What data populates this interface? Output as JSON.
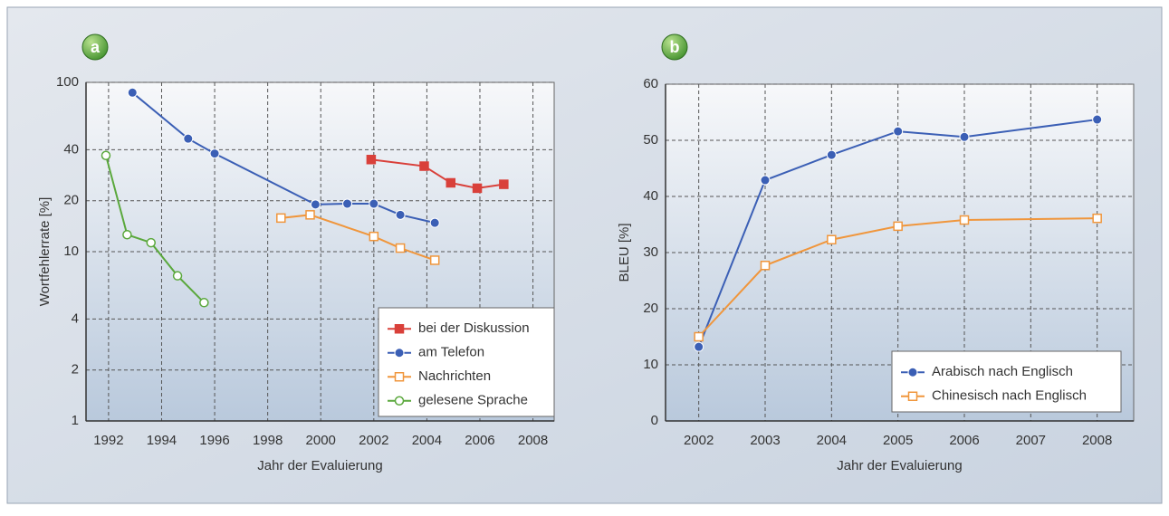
{
  "chart_data": [
    {
      "type": "line",
      "annotations": [
        "a"
      ],
      "x_label": "Jahr der Evaluierung",
      "y_label": "Wortfehlerrate [%]",
      "log_y": true,
      "grid": true,
      "legend": "lower right",
      "xlim": [
        1991.15,
        2008.8
      ],
      "xticks": [
        1992,
        1994,
        1996,
        1998,
        2000,
        2002,
        2004,
        2006,
        2008
      ],
      "ylim": [
        1,
        100
      ],
      "yticks": [
        1,
        2,
        4,
        10,
        20,
        40,
        100
      ],
      "series": [
        {
          "name": "bei der Diskussion",
          "color": "#d9403a",
          "marker": "square-filled",
          "x": [
            2001.9,
            2003.9,
            2004.9,
            2005.9,
            2006.9
          ],
          "values": [
            35,
            32,
            25.5,
            23.7,
            25
          ]
        },
        {
          "name": "am Telefon",
          "color": "#3b5fb5",
          "marker": "circle-filled",
          "x": [
            1992.9,
            1995,
            1996,
            1999.8,
            2001,
            2002,
            2003,
            2004.3
          ],
          "values": [
            87,
            46.5,
            38,
            19,
            19.2,
            19.2,
            16.5,
            14.8
          ]
        },
        {
          "name": "Nachrichten",
          "color": "#f0963c",
          "marker": "square-open",
          "x": [
            1998.5,
            1999.6,
            2002,
            2003,
            2004.3
          ],
          "values": [
            15.8,
            16.5,
            12.3,
            10.5,
            8.9
          ]
        },
        {
          "name": "gelesene Sprache",
          "color": "#5aa83c",
          "marker": "circle-open",
          "x": [
            1991.9,
            1992.7,
            1993.6,
            1994.6,
            1995.6
          ],
          "values": [
            37,
            12.6,
            11.3,
            7.2,
            5.0
          ]
        }
      ]
    },
    {
      "type": "line",
      "annotations": [
        "b"
      ],
      "x_label": "Jahr der Evaluierung",
      "y_label": "BLEU [%]",
      "log_y": false,
      "grid": true,
      "legend": "lower right",
      "xlim": [
        2001.5,
        2008.55
      ],
      "xticks": [
        2002,
        2003,
        2004,
        2005,
        2006,
        2007,
        2008
      ],
      "ylim": [
        0,
        60
      ],
      "yticks": [
        0,
        10,
        20,
        30,
        40,
        50,
        60
      ],
      "series": [
        {
          "name": "Arabisch nach Englisch",
          "color": "#3b5fb5",
          "marker": "circle-filled",
          "x": [
            2002,
            2003,
            2004,
            2005,
            2006,
            2008
          ],
          "values": [
            13.2,
            42.9,
            47.4,
            51.6,
            50.6,
            53.7
          ]
        },
        {
          "name": "Chinesisch nach Englisch",
          "color": "#f0963c",
          "marker": "square-open",
          "x": [
            2002,
            2003,
            2004,
            2005,
            2006,
            2008
          ],
          "values": [
            15,
            27.7,
            32.3,
            34.7,
            35.8,
            36.1
          ]
        }
      ]
    }
  ]
}
